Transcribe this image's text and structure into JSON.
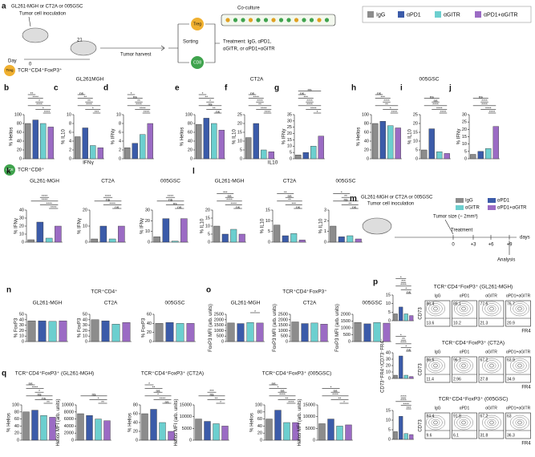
{
  "legend": {
    "items": [
      {
        "name": "IgG",
        "color": "#8c8c8c"
      },
      {
        "name": "αPD1",
        "color": "#3b5ba9"
      },
      {
        "name": "αGITR",
        "color": "#6ccfcf"
      },
      {
        "name": "αPD1+αGITR",
        "color": "#9b6bc4"
      }
    ]
  },
  "diagram_a": {
    "panel": "a",
    "cells": "GL261-MGH or CT2A or 005GSC",
    "inoculation": "Tumor cell inoculation",
    "day": "Day",
    "d0": "0",
    "d21": "21",
    "harvest": "Tumor harvest",
    "sorting": "Sorting",
    "treg": "Treg",
    "cd8": "CD8",
    "coculture": "Co-culture",
    "treatment1": "Treatment: IgG, αPD1,",
    "treatment2": "αGITR, or αPD1+αGITR"
  },
  "diagram_m": {
    "panel": "m",
    "cells": "GL261-MGH or CT2A or 005GSC",
    "inoculation": "Tumor cell inoculation",
    "size": "Tumor size (~ 2mm³)",
    "treatment": "Treatment",
    "analysis": "Analysis",
    "days": [
      "0",
      "+3",
      "+6",
      "+9"
    ],
    "unit": "days"
  },
  "headers": {
    "treg_row": "TCR⁺CD4⁺FoxP3⁺",
    "cd8_row": "TCR⁺CD8⁺",
    "g1": "GL261MGH",
    "g2": "CT2A",
    "g3": "005GSC",
    "ifng": "IFNγ",
    "il10": "IL10",
    "n": "TCR⁺CD4⁺",
    "o": "TCR⁺CD4⁺FoxP3⁺",
    "q1": "TCR⁺CD4⁺FoxP3⁺ (GL261-MGH)",
    "q2": "TCR⁺CD4⁺FoxP3⁺ (CT2A)",
    "q3": "TCR⁺CD4⁺FoxP3⁺ (005GSC)",
    "q": "q"
  },
  "chart_data": [
    {
      "type": "bar",
      "panel": "b",
      "ylabel": "% Helios",
      "values": [
        80,
        88,
        80,
        72
      ],
      "ylim": [
        0,
        100
      ],
      "yticks": [
        0,
        20,
        40,
        60,
        80,
        100
      ],
      "annotations": [
        "****",
        "*",
        "****",
        "*",
        "****",
        "**"
      ]
    },
    {
      "type": "bar",
      "panel": "c",
      "ylabel": "% IL10",
      "values": [
        5,
        7,
        3,
        2.5
      ],
      "ylim": [
        0,
        10
      ],
      "yticks": [
        0,
        2,
        4,
        6,
        8,
        10
      ],
      "annotations": [
        "***",
        "*",
        "****",
        "**",
        "**",
        "ns"
      ]
    },
    {
      "type": "bar",
      "panel": "d",
      "ylabel": "% IFNγ",
      "values": [
        2.5,
        3.5,
        5.5,
        8
      ],
      "ylim": [
        0,
        10
      ],
      "yticks": [
        0,
        2,
        4,
        6,
        8,
        10
      ],
      "annotations": [
        "****",
        "****",
        "****",
        "**",
        "ns",
        "*"
      ]
    },
    {
      "type": "bar",
      "panel": "e",
      "ylabel": "% Helios",
      "values": [
        78,
        92,
        80,
        65
      ],
      "ylim": [
        0,
        100
      ],
      "yticks": [
        0,
        20,
        40,
        60,
        80,
        100
      ],
      "annotations": [
        "ns",
        "**",
        "ns",
        "*",
        "**",
        "*"
      ]
    },
    {
      "type": "bar",
      "panel": "f",
      "ylabel": "% IL10",
      "values": [
        12,
        20,
        5,
        4
      ],
      "ylim": [
        0,
        25
      ],
      "yticks": [
        0,
        5,
        10,
        15,
        20,
        25
      ],
      "annotations": [
        "****",
        "****",
        "**",
        "****",
        "****",
        "ns"
      ]
    },
    {
      "type": "bar",
      "panel": "g",
      "ylabel": "% IFNγ",
      "values": [
        3,
        5,
        10,
        18
      ],
      "ylim": [
        0,
        35
      ],
      "yticks": [
        0,
        5,
        10,
        15,
        20,
        25,
        30,
        35
      ],
      "annotations": [
        "*",
        "****",
        "****",
        "****",
        "***",
        "ns",
        "ns"
      ]
    },
    {
      "type": "bar",
      "panel": "h",
      "ylabel": "% Helios",
      "values": [
        80,
        85,
        75,
        70
      ],
      "ylim": [
        0,
        100
      ],
      "yticks": [
        0,
        20,
        40,
        60,
        80,
        100
      ],
      "annotations": [
        "****",
        "*",
        "**",
        "****",
        "***",
        "ns"
      ]
    },
    {
      "type": "bar",
      "panel": "i",
      "ylabel": "% IL10",
      "values": [
        5,
        17,
        4,
        3
      ],
      "ylim": [
        0,
        25
      ],
      "yticks": [
        0,
        5,
        10,
        15,
        20,
        25
      ],
      "annotations": [
        "****",
        "****",
        "****",
        "ns",
        "ns"
      ]
    },
    {
      "type": "bar",
      "panel": "j",
      "ylabel": "% IFNγ",
      "values": [
        3,
        5,
        7,
        22
      ],
      "ylim": [
        0,
        30
      ],
      "yticks": [
        0,
        5,
        10,
        15,
        20,
        25,
        30
      ],
      "annotations": [
        "****",
        "****",
        "****",
        "****",
        "ns"
      ]
    },
    {
      "type": "bar",
      "panel": "k",
      "title": "GL261-MGH",
      "ylabel": "% IFNγ",
      "values": [
        3,
        25,
        5,
        20
      ],
      "ylim": [
        0,
        40
      ],
      "yticks": [
        0,
        10,
        20,
        30,
        40
      ],
      "annotations": [
        "****",
        "****",
        "****",
        "****"
      ]
    },
    {
      "type": "bar",
      "title": "CT2A",
      "ylabel": "% IFNγ",
      "values": [
        2,
        10,
        2,
        10
      ],
      "ylim": [
        0,
        20
      ],
      "yticks": [
        0,
        10,
        20
      ],
      "annotations": [
        "ns",
        "****",
        "ns",
        "****"
      ]
    },
    {
      "type": "bar",
      "title": "005GSC",
      "ylabel": "% IFNγ",
      "values": [
        5,
        22,
        1,
        22
      ],
      "ylim": [
        0,
        30
      ],
      "yticks": [
        0,
        10,
        20,
        30
      ],
      "annotations": [
        "ns",
        "ns",
        "ns",
        "****"
      ]
    },
    {
      "type": "bar",
      "panel": "l",
      "title": "GL261-MGH",
      "ylabel": "% IL10",
      "values": [
        10,
        5,
        8,
        5
      ],
      "ylim": [
        0,
        20
      ],
      "yticks": [
        0,
        5,
        10,
        15,
        20
      ],
      "annotations": [
        "ns",
        "****",
        "****",
        "ns",
        "***"
      ]
    },
    {
      "type": "bar",
      "title": "CT2A",
      "ylabel": "% IL10",
      "values": [
        8,
        3,
        4,
        1
      ],
      "ylim": [
        0,
        15
      ],
      "yticks": [
        0,
        5,
        10,
        15
      ],
      "annotations": [
        "ns",
        "***",
        "**",
        "ns",
        "**"
      ]
    },
    {
      "type": "bar",
      "title": "005GSC",
      "ylabel": "% IL10",
      "values": [
        1.5,
        0.5,
        0.6,
        0.3
      ],
      "ylim": [
        0,
        3
      ],
      "yticks": [
        0,
        1,
        2,
        3
      ],
      "annotations": [
        "ns",
        "**",
        "ns",
        "**",
        "*"
      ]
    },
    {
      "type": "bar",
      "panel": "n",
      "title": "GL261-MGH",
      "ylabel": "% FoxP3",
      "values": [
        38,
        38,
        37,
        38
      ],
      "ylim": [
        0,
        50
      ],
      "yticks": [
        0,
        10,
        20,
        30,
        40,
        50
      ],
      "annotations": []
    },
    {
      "type": "bar",
      "title": "CT2A",
      "ylabel": "% FoxP3",
      "values": [
        40,
        38,
        32,
        35
      ],
      "ylim": [
        0,
        50
      ],
      "yticks": [
        0,
        10,
        20,
        30,
        40,
        50
      ],
      "annotations": []
    },
    {
      "type": "bar",
      "title": "005GSC",
      "ylabel": "% FoxP3",
      "values": [
        40,
        42,
        40,
        40
      ],
      "ylim": [
        0,
        60
      ],
      "yticks": [
        0,
        20,
        40,
        60
      ],
      "annotations": []
    },
    {
      "type": "bar",
      "panel": "o",
      "title": "GL261-MGH",
      "ylabel": "FoxP3 MFI (arb. units)",
      "values": [
        1700,
        1650,
        1750,
        1700
      ],
      "ylim": [
        0,
        2500
      ],
      "yticks": [
        0,
        500,
        1000,
        1500,
        2000,
        2500
      ],
      "annotations": [
        "*"
      ]
    },
    {
      "type": "bar",
      "title": "CT2A",
      "ylabel": "FoxP3 MFI (arb. units)",
      "values": [
        1800,
        1650,
        1700,
        1600
      ],
      "ylim": [
        0,
        2500
      ],
      "yticks": [
        0,
        500,
        1000,
        1500,
        2000,
        2500
      ],
      "annotations": []
    },
    {
      "type": "bar",
      "title": "005GSC",
      "ylabel": "FoxP3 MFI (arb. units)",
      "values": [
        1400,
        1300,
        1400,
        1350
      ],
      "ylim": [
        0,
        2000
      ],
      "yticks": [
        0,
        500,
        1000,
        1500,
        2000
      ],
      "annotations": []
    },
    {
      "type": "bar",
      "ylabel": "% Helios",
      "values": [
        80,
        85,
        70,
        65
      ],
      "ylim": [
        0,
        100
      ],
      "yticks": [
        0,
        20,
        40,
        60,
        80,
        100
      ],
      "annotations": [
        "**",
        "ns",
        "ns",
        "*",
        "****",
        "ns"
      ]
    },
    {
      "type": "bar",
      "ylabel": "Helios MFI (arb. units)",
      "values": [
        7500,
        7000,
        6000,
        5500
      ],
      "ylim": [
        0,
        10000
      ],
      "yticks": [
        0,
        2000,
        4000,
        6000,
        8000,
        10000
      ],
      "annotations": [
        "**",
        "*",
        "ns"
      ]
    },
    {
      "type": "bar",
      "ylabel": "% Helios",
      "values": [
        60,
        70,
        40,
        20
      ],
      "ylim": [
        0,
        80
      ],
      "yticks": [
        0,
        20,
        40,
        60,
        80
      ],
      "annotations": [
        "ns",
        "****",
        "*",
        "ns",
        "**",
        "*"
      ]
    },
    {
      "type": "bar",
      "ylabel": "Helios MFI (arb. units)",
      "values": [
        9000,
        8000,
        7000,
        6000
      ],
      "ylim": [
        0,
        15000
      ],
      "yticks": [
        0,
        5000,
        10000,
        15000
      ],
      "annotations": [
        "*",
        "**",
        "ns",
        "***"
      ]
    },
    {
      "type": "bar",
      "ylabel": "% Helios",
      "values": [
        60,
        85,
        50,
        50
      ],
      "ylim": [
        0,
        100
      ],
      "yticks": [
        0,
        20,
        40,
        60,
        80,
        100
      ],
      "annotations": [
        "****",
        "**",
        "****",
        "ns",
        "*",
        "ns"
      ]
    },
    {
      "type": "bar",
      "ylabel": "Helios MFI (arb. units)",
      "values": [
        7000,
        9000,
        6000,
        6500
      ],
      "ylim": [
        0,
        15000
      ],
      "yticks": [
        0,
        5000,
        10000,
        15000
      ],
      "annotations": [
        "*",
        "**",
        "****",
        "ns",
        "*"
      ]
    },
    {
      "type": "bar",
      "panel": "p",
      "values": [
        4,
        8,
        4,
        3
      ],
      "ylim": [
        0,
        15
      ],
      "yticks": [
        0,
        5,
        10,
        15
      ],
      "annotations": [
        "ns",
        "*",
        "****",
        "***",
        "*"
      ]
    },
    {
      "type": "bar",
      "ylabel": "CD73⁺FR4⁺/CD73⁻FR4⁻",
      "values": [
        5,
        35,
        5,
        3
      ],
      "ylim": [
        0,
        40
      ],
      "yticks": [
        0,
        10,
        20,
        30,
        40
      ],
      "annotations": [
        "ns",
        "*",
        "****",
        "**",
        "*"
      ]
    },
    {
      "type": "bar",
      "values": [
        4,
        12,
        3,
        2.5
      ],
      "ylim": [
        0,
        15
      ],
      "yticks": [
        0,
        5,
        10,
        15
      ],
      "annotations": [
        "***",
        "****",
        "****",
        "****"
      ]
    }
  ],
  "flow": {
    "xlabel": "FR4",
    "ylabel": "CD73",
    "columns": [
      "IgG",
      "αPD1",
      "αGITR",
      "αPD1+αGITR"
    ],
    "rows": [
      {
        "title": "TCR⁺CD4⁺FoxP3⁺ (GL261-MGH)",
        "quadrants": [
          [
            86.4,
            13.6
          ],
          [
            89.1,
            10.2
          ],
          [
            77.5,
            21.3
          ],
          [
            76.7,
            20.9
          ]
        ]
      },
      {
        "title": "TCR⁺CD4⁺FoxP3⁺ (CT2A)",
        "quadrants": [
          [
            86.6,
            11.4
          ],
          [
            96.7,
            2.96
          ],
          [
            67.2,
            27.8
          ],
          [
            63.9,
            34.9
          ]
        ]
      },
      {
        "title": "TCR⁺CD4⁺FoxP3⁺ (005GSC)",
        "quadrants": [
          [
            84.4,
            9.6
          ],
          [
            91.8,
            6.1
          ],
          [
            67.2,
            31.8
          ],
          [
            63,
            36.3
          ]
        ]
      }
    ]
  }
}
